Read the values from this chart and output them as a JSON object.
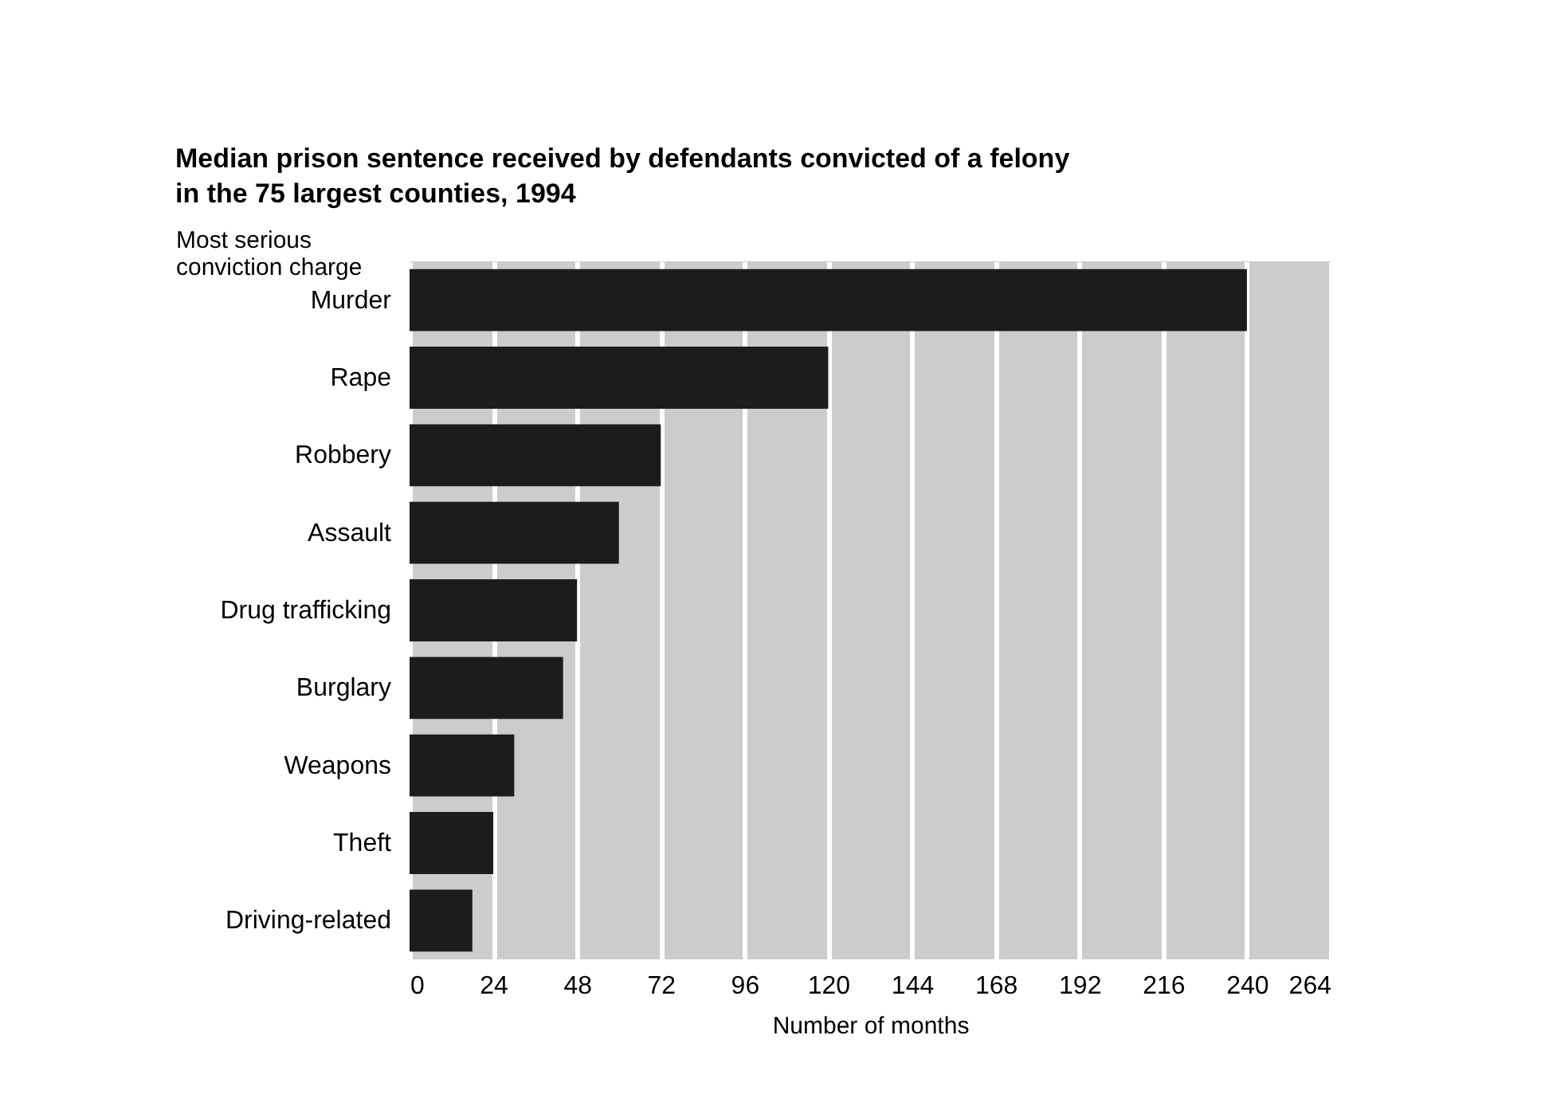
{
  "chart_data": {
    "type": "bar",
    "orientation": "horizontal",
    "title": "Median prison sentence received by defendants convicted of a felony\nin the 75 largest counties, 1994",
    "ylabel": "Most serious\nconviction charge",
    "xlabel": "Number of months",
    "categories": [
      "Murder",
      "Rape",
      "Robbery",
      "Assault",
      "Drug trafficking",
      "Burglary",
      "Weapons",
      "Theft",
      "Driving-related"
    ],
    "values": [
      240,
      120,
      72,
      60,
      48,
      44,
      30,
      24,
      18
    ],
    "color": "#1c1c1c",
    "xlim": [
      0,
      264
    ],
    "xticks": [
      0,
      24,
      48,
      72,
      96,
      120,
      144,
      168,
      192,
      216,
      240,
      264
    ],
    "grid": "x"
  }
}
